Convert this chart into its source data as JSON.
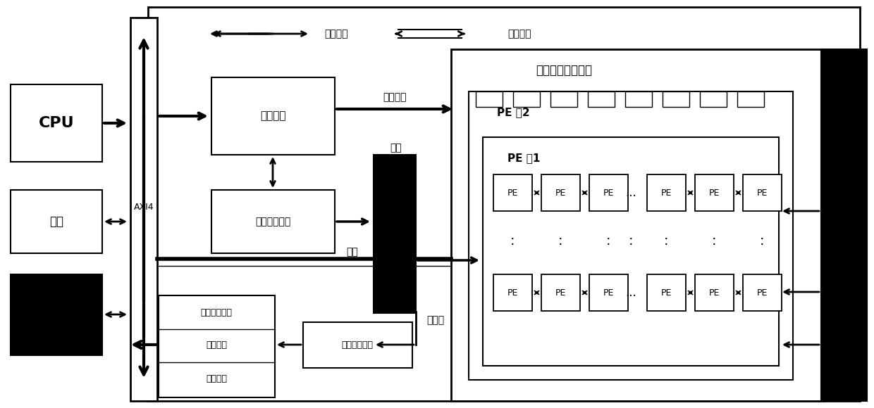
{
  "bg_color": "#ffffff",
  "black": "#000000",
  "white": "#ffffff",
  "labels": {
    "cpu": "CPU",
    "netport": "网口",
    "axi4": "AXI4",
    "main_ctrl": "主控制器",
    "data_dispatch": "数据分发模块",
    "reconfig_array": "可重构的运算阵列",
    "pe_group2": "PE 组2",
    "pe_group1": "PE 组1",
    "pe": "PE",
    "ctrl_info": "控制信息",
    "data_info": "数据信息",
    "reconfig_info": "重构信息",
    "weight": "权重",
    "activation": "激励",
    "partial_sum": "部分和",
    "linear_fix": "线性修正模块",
    "pool": "池化模块",
    "encode": "编码模块",
    "output_buffer": "输出缓存模块"
  }
}
